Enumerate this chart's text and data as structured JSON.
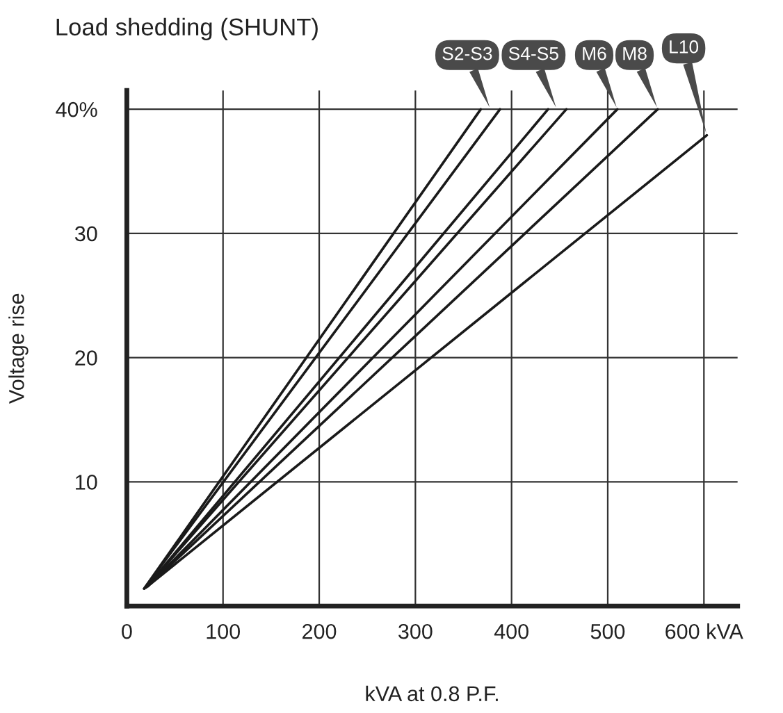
{
  "chart_data": {
    "type": "line",
    "title": "Load shedding (SHUNT)",
    "xlabel": "kVA at 0.8 P.F.",
    "ylabel": "Voltage rise",
    "series": [
      {
        "color": "#1a1a1a",
        "x": [
          18,
          368
        ],
        "values": [
          1.4,
          40
        ]
      },
      {
        "color": "#1a1a1a",
        "x": [
          18,
          388
        ],
        "values": [
          1.4,
          40
        ]
      },
      {
        "color": "#1a1a1a",
        "x": [
          20,
          438
        ],
        "values": [
          1.5,
          40
        ]
      },
      {
        "color": "#1a1a1a",
        "x": [
          20,
          457
        ],
        "values": [
          1.5,
          40
        ]
      },
      {
        "color": "#1a1a1a",
        "x": [
          22,
          510
        ],
        "values": [
          1.6,
          40
        ]
      },
      {
        "color": "#1a1a1a",
        "x": [
          22,
          552
        ],
        "values": [
          1.6,
          40
        ]
      },
      {
        "color": "#1a1a1a",
        "x": [
          25,
          603
        ],
        "values": [
          1.8,
          37.9
        ]
      }
    ],
    "annotations": [
      {
        "text": "S2-S3",
        "x": 378,
        "y": 40
      },
      {
        "text": "S4-S5",
        "x": 447,
        "y": 40
      },
      {
        "text": "M6",
        "x": 510,
        "y": 40
      },
      {
        "text": "M8",
        "x": 552,
        "y": 40
      },
      {
        "text": "L10",
        "x": 603,
        "y": 37.9
      }
    ],
    "xlim": [
      0,
      635
    ],
    "ylim": [
      0,
      41.5
    ],
    "xticks": [
      0,
      100,
      200,
      300,
      400,
      500,
      {
        "value": 600,
        "label": "600 kVA"
      }
    ],
    "yticks": [
      10,
      20,
      30,
      {
        "value": 40,
        "label": "40%"
      }
    ],
    "grid": true,
    "legend": false,
    "line_style": "solid",
    "marker": "none"
  }
}
